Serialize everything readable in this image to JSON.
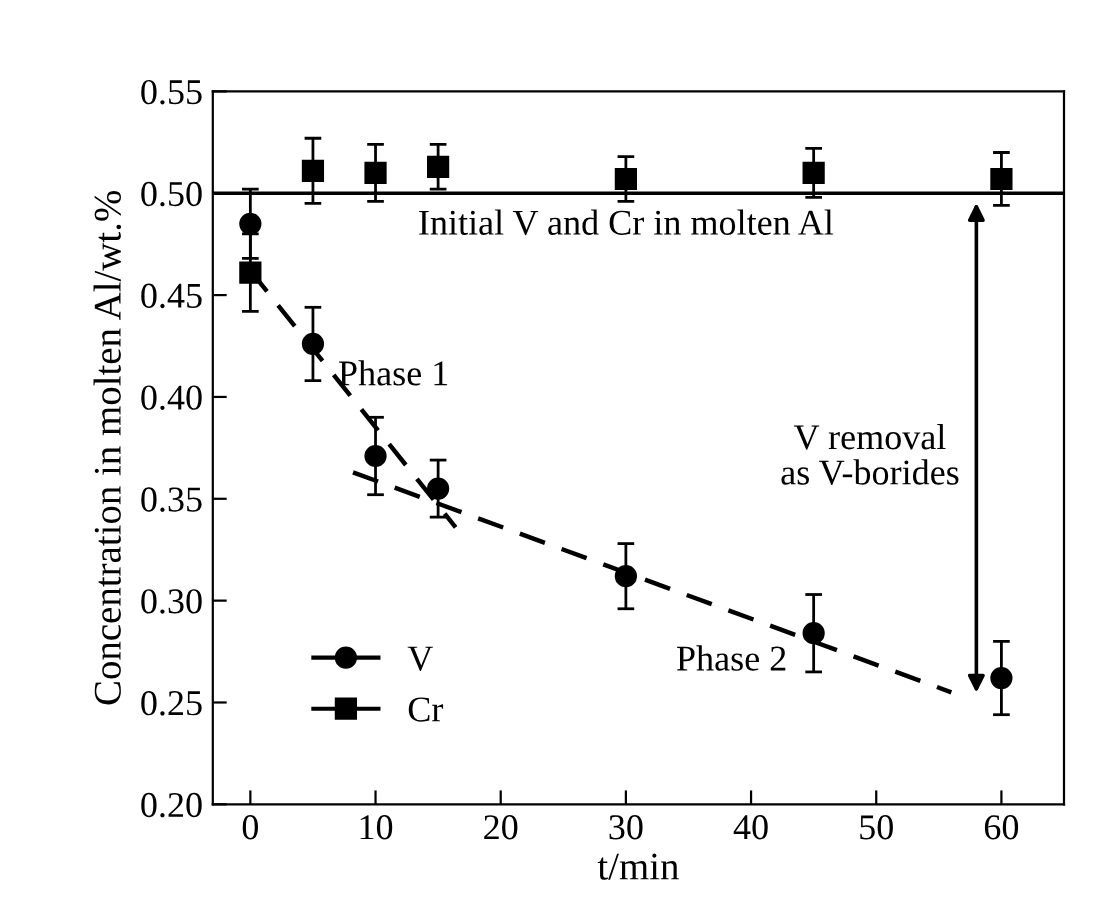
{
  "chart_data": {
    "type": "scatter",
    "xlabel": "t/min",
    "ylabel": "Concentration in molten Al/wt.%",
    "xlim": [
      -3,
      65
    ],
    "ylim": [
      0.2,
      0.55
    ],
    "xticks": [
      0,
      10,
      20,
      30,
      40,
      50,
      60
    ],
    "yticks": [
      {
        "value": 0.2,
        "label": "0.20"
      },
      {
        "value": 0.25,
        "label": "0.25"
      },
      {
        "value": 0.3,
        "label": "0.30"
      },
      {
        "value": 0.35,
        "label": "0.35"
      },
      {
        "value": 0.4,
        "label": "0.40"
      },
      {
        "value": 0.45,
        "label": "0.45"
      },
      {
        "value": 0.5,
        "label": "0.50"
      },
      {
        "value": 0.55,
        "label": "0.55"
      }
    ],
    "x": [
      0,
      5,
      10,
      15,
      30,
      45,
      60
    ],
    "grid": false,
    "legend": "bottom left",
    "series": [
      {
        "name": "V",
        "color": "#000000",
        "marker": "circle",
        "values": [
          0.485,
          0.426,
          0.371,
          0.355,
          0.312,
          0.284,
          0.262
        ],
        "errors": [
          0.017,
          0.018,
          0.019,
          0.014,
          0.016,
          0.019,
          0.018
        ]
      },
      {
        "name": "Cr",
        "color": "#000000",
        "marker": "square",
        "values": [
          0.461,
          0.511,
          0.51,
          0.513,
          0.507,
          0.51,
          0.507
        ],
        "errors": [
          0.019,
          0.016,
          0.014,
          0.011,
          0.011,
          0.012,
          0.013
        ]
      },
      {
        "type": "line",
        "color": "#000000",
        "line_style": "dashed",
        "marker": "none",
        "x": [
          0,
          16.4
        ],
        "values": [
          0.462,
          0.336
        ]
      },
      {
        "type": "line",
        "color": "#000000",
        "line_style": "dashed",
        "marker": "none",
        "x": [
          8.2,
          56
        ],
        "values": [
          0.363,
          0.255
        ]
      }
    ],
    "ref_lines": [
      {
        "axis": "y",
        "value": 0.5,
        "label": "Initial V and Cr in molten Al",
        "color": "#000000",
        "line_style": "solid"
      }
    ],
    "annotations": [
      "Phase 1",
      "Phase 2",
      "V removal\nas V-borides"
    ]
  }
}
